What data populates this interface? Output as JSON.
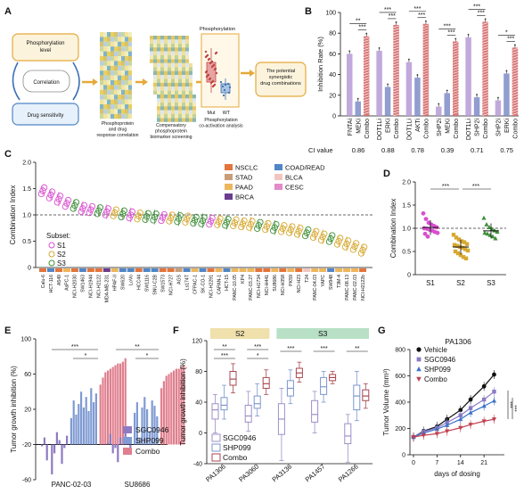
{
  "panel_letters": {
    "A": "A",
    "B": "B",
    "C": "C",
    "D": "D",
    "E": "E",
    "F": "F",
    "G": "G"
  },
  "workflow": {
    "box_phospho": "Phosphorylation level",
    "box_correlation": "Correlation",
    "box_drug": "Drug sensitivity",
    "phospho_title": "Phosphorylation",
    "mut_label": "Mut",
    "wt_label": "WT",
    "caption1": "Phosphoprotein and drug response correlation",
    "caption2": "Compensatory phosphoprotein biomarker screening",
    "caption3": "Phosphorylation co-activation analysis",
    "result_box": "The potential synergistic drug combinations"
  },
  "chart_data": [
    {
      "panel": "B",
      "type": "bar",
      "ylabel": "Inhibition Rate (%)",
      "ylim": [
        0,
        100
      ],
      "yticks": [
        0,
        20,
        40,
        60,
        80,
        100
      ],
      "ci_label": "CI value",
      "groups": [
        {
          "labels": [
            "FNTAi",
            "MEKi",
            "Combo"
          ],
          "values": [
            60,
            14,
            77
          ],
          "ci": "0.86",
          "sig": [
            "**",
            "***"
          ]
        },
        {
          "labels": [
            "DOT1Li",
            "ERKi",
            "Combo"
          ],
          "values": [
            63,
            28,
            88
          ],
          "ci": "0.88",
          "sig": [
            "***",
            "***"
          ]
        },
        {
          "labels": [
            "DOT1Li",
            "AKTi",
            "Combo"
          ],
          "values": [
            52,
            37,
            89
          ],
          "ci": "0.78",
          "sig": [
            "***",
            "***"
          ]
        },
        {
          "labels": [
            "SHP2i",
            "MEKi",
            "Combo"
          ],
          "values": [
            9,
            22,
            72
          ],
          "ci": "0.39",
          "sig": [
            "***",
            "***"
          ]
        },
        {
          "labels": [
            "DOT1Li",
            "SHP2i",
            "Combo"
          ],
          "values": [
            76,
            18,
            91
          ],
          "ci": "0.71",
          "sig": [
            "***",
            "***"
          ]
        },
        {
          "labels": [
            "SHP2i",
            "ERKi",
            "Combo"
          ],
          "values": [
            15,
            41,
            66
          ],
          "ci": "0.75",
          "sig": [
            "*",
            "***"
          ]
        }
      ],
      "colors": [
        "#b79ad6",
        "#7f8cc8",
        "#d66a6a"
      ]
    },
    {
      "panel": "C",
      "type": "scatter",
      "ylabel": "Combination Index",
      "ylim": [
        0,
        2.0
      ],
      "yticks": [
        "0",
        "0.5",
        "1.0",
        "1.5",
        "2.0"
      ],
      "reference_line": 1.0,
      "subset_title": "Subset:",
      "subsets": [
        {
          "name": "S1",
          "color": "#d94fd0"
        },
        {
          "name": "S2",
          "color": "#d6a830"
        },
        {
          "name": "S3",
          "color": "#3f8f3a"
        }
      ],
      "cancer_types": [
        {
          "name": "NSCLC",
          "color": "#e3743b"
        },
        {
          "name": "STAD",
          "color": "#c99d78"
        },
        {
          "name": "PAAD",
          "color": "#edb65c"
        },
        {
          "name": "BRCA",
          "color": "#6a3d8f"
        },
        {
          "name": "COAD/READ",
          "color": "#4f86c6"
        },
        {
          "name": "BLCA",
          "color": "#f2c6c0"
        },
        {
          "name": "CESC",
          "color": "#e38bc9"
        }
      ],
      "cell_lines": [
        "Calu-6",
        "HCT-116",
        "A549",
        "AsPC-1",
        "NCI-H2030",
        "SW1463",
        "NCI-H1944",
        "NCI-H2122",
        "MDA-MB-231",
        "HPAF-II",
        "SW620",
        "LoVo",
        "HCC44",
        "SW1116",
        "SNU-C2B",
        "SW1573",
        "NCI-H727",
        "AGS",
        "Ls174T",
        "CFPAC-1",
        "SK-CO-1",
        "NCI-H2291",
        "CAPAN-1",
        "HCT-15",
        "PANC-10.05",
        "KP4",
        "PANC-03.27",
        "NCI-H1734",
        "NCI-H441",
        "SU8686",
        "NCI-H358",
        "PK59",
        "NCI-H23",
        "T24",
        "PANC-04.03",
        "YAPC",
        "SW948",
        "T3M-4",
        "PANC-08.13",
        "PANC-02.03",
        "NCI-H2122b"
      ],
      "ci_values": [
        1.46,
        1.38,
        1.3,
        1.22,
        1.18,
        1.12,
        1.1,
        1.08,
        1.06,
        1.04,
        1.02,
        1.0,
        0.98,
        0.97,
        0.96,
        0.95,
        0.94,
        0.93,
        0.92,
        0.9,
        0.89,
        0.88,
        0.87,
        0.86,
        0.85,
        0.83,
        0.82,
        0.8,
        0.78,
        0.76,
        0.74,
        0.72,
        0.69,
        0.66,
        0.63,
        0.58,
        0.55,
        0.5,
        0.45,
        0.4,
        0.33
      ],
      "subset_of_each": [
        "S1",
        "S1",
        "S1",
        "S1",
        "S3",
        "S1",
        "S1",
        "S3",
        "S1",
        "S2",
        "S3",
        "S1",
        "S2",
        "S3",
        "S3",
        "S1",
        "S2",
        "S3",
        "S2",
        "S3",
        "S3",
        "S1",
        "S2",
        "S3",
        "S2",
        "S2",
        "S2",
        "S3",
        "S2",
        "S3",
        "S2",
        "S2",
        "S2",
        "S3",
        "S2",
        "S2",
        "S3",
        "S2",
        "S2",
        "S2",
        "S2"
      ],
      "type_of_each": [
        "NSCLC",
        "COAD/READ",
        "NSCLC",
        "PAAD",
        "NSCLC",
        "COAD/READ",
        "NSCLC",
        "NSCLC",
        "BRCA",
        "PAAD",
        "COAD/READ",
        "COAD/READ",
        "NSCLC",
        "COAD/READ",
        "COAD/READ",
        "NSCLC",
        "NSCLC",
        "STAD",
        "COAD/READ",
        "PAAD",
        "COAD/READ",
        "NSCLC",
        "PAAD",
        "COAD/READ",
        "PAAD",
        "PAAD",
        "PAAD",
        "NSCLC",
        "NSCLC",
        "PAAD",
        "NSCLC",
        "PAAD",
        "NSCLC",
        "BLCA",
        "PAAD",
        "PAAD",
        "COAD/READ",
        "PAAD",
        "PAAD",
        "PAAD",
        "NSCLC"
      ]
    },
    {
      "panel": "D",
      "type": "scatter",
      "ylabel": "Combination Index",
      "ylim": [
        0,
        2.0
      ],
      "yticks": [
        "0",
        "0.5",
        "1.0",
        "1.5",
        "2.0"
      ],
      "reference_line": 1.0,
      "categories": [
        "S1",
        "S2",
        "S3"
      ],
      "colors": [
        "#d94fd0",
        "#d6a830",
        "#3f8f3a"
      ],
      "series": [
        {
          "name": "S1",
          "values": [
            1.32,
            1.2,
            1.12,
            1.08,
            1.05,
            1.02,
            1.0,
            0.99,
            0.97,
            0.95,
            0.92,
            0.9,
            0.88,
            0.82
          ]
        },
        {
          "name": "S2",
          "values": [
            0.86,
            0.8,
            0.76,
            0.72,
            0.7,
            0.66,
            0.64,
            0.62,
            0.6,
            0.58,
            0.55,
            0.52,
            0.5,
            0.46,
            0.42,
            0.38,
            0.35
          ]
        },
        {
          "name": "S3",
          "values": [
            1.22,
            1.08,
            1.02,
            0.98,
            0.95,
            0.92,
            0.9,
            0.88,
            0.85,
            0.82,
            0.78
          ]
        }
      ],
      "sig": [
        "***",
        "***"
      ]
    },
    {
      "panel": "E",
      "type": "bar",
      "ylabel": "Tumor growth inhibition (%)",
      "ylim": [
        -60,
        100
      ],
      "yticks": [
        -60,
        -20,
        20,
        60,
        100
      ],
      "categories": [
        "PANC-02-03",
        "SU8686"
      ],
      "series": [
        {
          "name": "SGC0946",
          "color": "#8e7bc2",
          "values": [
            [
              -22,
              -12,
              -38,
              -20,
              -54,
              -30,
              -6,
              -15,
              -42,
              -24,
              -10
            ],
            [
              -18,
              -8,
              -30,
              -24,
              -40,
              -12,
              -20,
              -6,
              -14,
              -26
            ]
          ]
        },
        {
          "name": "SHP099",
          "color": "#7f9bd3",
          "values": [
            [
              10,
              30,
              14,
              26,
              40,
              22,
              34,
              18,
              44,
              28,
              38
            ],
            [
              16,
              28,
              -12,
              22,
              34,
              20,
              -5,
              30,
              24,
              12
            ]
          ]
        },
        {
          "name": "Combo",
          "color": "#e07f8e",
          "values": [
            [
              48,
              56,
              62,
              64,
              66,
              68,
              70,
              72,
              72,
              74,
              78
            ],
            [
              44,
              52,
              58,
              60,
              62,
              64,
              66,
              66,
              68,
              70
            ]
          ]
        }
      ],
      "sig": [
        "***",
        "*",
        "**",
        "*"
      ]
    },
    {
      "panel": "F",
      "type": "box",
      "ylabel": "Tumor growth inhibition (%)",
      "ylim": [
        -40,
        120
      ],
      "yticks": [
        -40,
        0,
        40,
        80,
        120
      ],
      "categories": [
        "PA1306",
        "PA3060",
        "PA3136",
        "PA1457",
        "PA1266"
      ],
      "group_labels": [
        {
          "name": "S2",
          "color": "#efe0ac"
        },
        {
          "name": "S3",
          "color": "#b8e0c6"
        }
      ],
      "series": [
        {
          "name": "SGC0946",
          "color": "#9d8fc8",
          "boxes": [
            [
              0,
              18,
              30,
              38,
              50
            ],
            [
              2,
              14,
              22,
              36,
              54
            ],
            [
              -36,
              -2,
              18,
              38,
              58
            ],
            [
              0,
              14,
              24,
              42,
              54
            ],
            [
              -38,
              -14,
              -4,
              12,
              24
            ]
          ]
        },
        {
          "name": "SHP099",
          "color": "#7b96cf",
          "boxes": [
            [
              18,
              30,
              36,
              46,
              62
            ],
            [
              22,
              32,
              38,
              48,
              64
            ],
            [
              38,
              48,
              58,
              68,
              82
            ],
            [
              40,
              50,
              60,
              72,
              80
            ],
            [
              16,
              30,
              48,
              62,
              80
            ]
          ]
        },
        {
          "name": "Combo",
          "color": "#a84850",
          "boxes": [
            [
              52,
              62,
              70,
              80,
              90
            ],
            [
              50,
              58,
              64,
              72,
              82
            ],
            [
              66,
              72,
              78,
              84,
              92
            ],
            [
              64,
              68,
              72,
              76,
              80
            ],
            [
              32,
              42,
              48,
              56,
              64
            ]
          ]
        }
      ],
      "sig": [
        "**",
        "***",
        "***",
        "*",
        "***",
        "***",
        "**"
      ]
    },
    {
      "panel": "G",
      "type": "line",
      "title": "PA1306",
      "xlabel": "days of dosing",
      "ylabel": "Tumor Volume (mm³)",
      "xticks": [
        0,
        7,
        14,
        21
      ],
      "yticks": [
        0,
        200,
        400,
        600,
        800
      ],
      "ylim": [
        0,
        800
      ],
      "x": [
        0,
        3,
        7,
        10,
        14,
        17,
        21,
        24
      ],
      "series": [
        {
          "name": "Vehicle",
          "color": "#111111",
          "marker": "circle",
          "values": [
            135,
            180,
            215,
            270,
            340,
            420,
            520,
            610
          ]
        },
        {
          "name": "SGC0946",
          "color": "#8b7bc4",
          "marker": "square",
          "values": [
            135,
            175,
            205,
            245,
            300,
            355,
            420,
            480
          ]
        },
        {
          "name": "SHP099",
          "color": "#3d74c8",
          "marker": "triangle",
          "values": [
            135,
            165,
            195,
            225,
            270,
            320,
            370,
            410
          ]
        },
        {
          "name": "Combo",
          "color": "#c0404f",
          "marker": "invtriangle",
          "values": [
            135,
            148,
            160,
            180,
            205,
            230,
            255,
            270
          ]
        }
      ],
      "sig": [
        "***",
        "***",
        "*"
      ]
    }
  ]
}
